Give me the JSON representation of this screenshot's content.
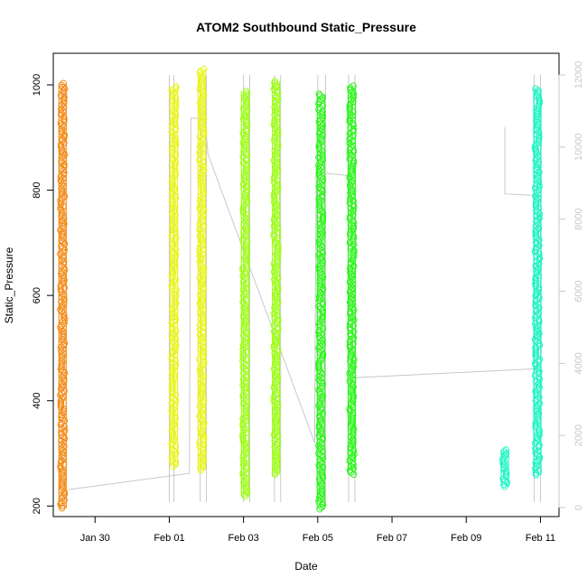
{
  "chart_data": {
    "type": "scatter",
    "title": "ATOM2 Southbound Static_Pressure",
    "xlabel": "Date",
    "ylabel": "Static_Pressure",
    "xlim": [
      "2014-01-28T21:00",
      "2014-02-11T12:00"
    ],
    "ylim": [
      180,
      1060
    ],
    "y2lim": [
      -250,
      12600
    ],
    "x_ticks": [
      {
        "label": "Jan 30",
        "date": "2014-01-30"
      },
      {
        "label": "Feb 01",
        "date": "2014-02-01"
      },
      {
        "label": "Feb 03",
        "date": "2014-02-03"
      },
      {
        "label": "Feb 05",
        "date": "2014-02-05"
      },
      {
        "label": "Feb 07",
        "date": "2014-02-07"
      },
      {
        "label": "Feb 09",
        "date": "2014-02-09"
      },
      {
        "label": "Feb 11",
        "date": "2014-02-11"
      }
    ],
    "y_ticks": [
      200,
      400,
      600,
      800,
      1000
    ],
    "y2_ticks": [
      0,
      2000,
      4000,
      6000,
      8000,
      10000,
      12000
    ],
    "grid": false,
    "legend": "none",
    "point_series": [
      {
        "color": "#f28a16",
        "clusters": [
          {
            "x": "2014-01-29T03:00",
            "y_min": 196,
            "y_max": 1003
          }
        ]
      },
      {
        "color": "#e8f51a",
        "clusters": [
          {
            "x": "2014-02-01T03:00",
            "y_min": 275,
            "y_max": 997
          },
          {
            "x": "2014-02-01T21:00",
            "y_min": 268,
            "y_max": 1030
          }
        ]
      },
      {
        "color": "#9dff14",
        "clusters": [
          {
            "x": "2014-02-03T01:00",
            "y_min": 218,
            "y_max": 988
          },
          {
            "x": "2014-02-03T21:00",
            "y_min": 260,
            "y_max": 1007
          }
        ]
      },
      {
        "color": "#2cf41b",
        "clusters": [
          {
            "x": "2014-02-05T02:00",
            "y_min": 194,
            "y_max": 983
          },
          {
            "x": "2014-02-05T22:00",
            "y_min": 260,
            "y_max": 998
          }
        ]
      },
      {
        "color": "#19f5c3",
        "clusters": [
          {
            "x": "2014-02-10T01:00",
            "y_min": 237,
            "y_max": 307
          },
          {
            "x": "2014-02-10T22:00",
            "y_min": 259,
            "y_max": 993
          }
        ]
      }
    ],
    "line_series": {
      "color": "#c8c8c8",
      "axis": "right",
      "points": [
        {
          "x": "2014-01-29T07:00",
          "y": 500
        },
        {
          "x": "2014-02-01T13:00",
          "y": 950
        },
        {
          "x": "2014-02-01T14:00",
          "y": 10800
        },
        {
          "x": "2014-02-01T23:00",
          "y": 10800
        },
        {
          "x": "2014-02-02T01:00",
          "y": 9800
        },
        {
          "x": "2014-02-04T22:00",
          "y": 1800
        },
        {
          "x": "2014-02-04T23:00",
          "y": 9300
        },
        {
          "x": "2014-02-05T21:00",
          "y": 9200
        },
        {
          "x": "2014-02-05T23:00",
          "y": 3600
        },
        {
          "x": "2014-02-10T22:00",
          "y": 3850
        },
        {
          "x": "2014-02-10T23:00",
          "y": 8650
        },
        {
          "x": "2014-02-10T01:00",
          "y": 8700
        },
        {
          "x": "2014-02-10T01:00",
          "y": 10550
        }
      ]
    },
    "spike_x": [
      "2014-02-01T00:00",
      "2014-02-01T03:00",
      "2014-02-01T20:00",
      "2014-02-02T00:00",
      "2014-02-03T00:00",
      "2014-02-03T04:00",
      "2014-02-03T20:00",
      "2014-02-04T00:00",
      "2014-02-05T00:00",
      "2014-02-05T05:00",
      "2014-02-05T20:00",
      "2014-02-06T00:00",
      "2014-02-10T20:00",
      "2014-02-11T00:00"
    ]
  }
}
